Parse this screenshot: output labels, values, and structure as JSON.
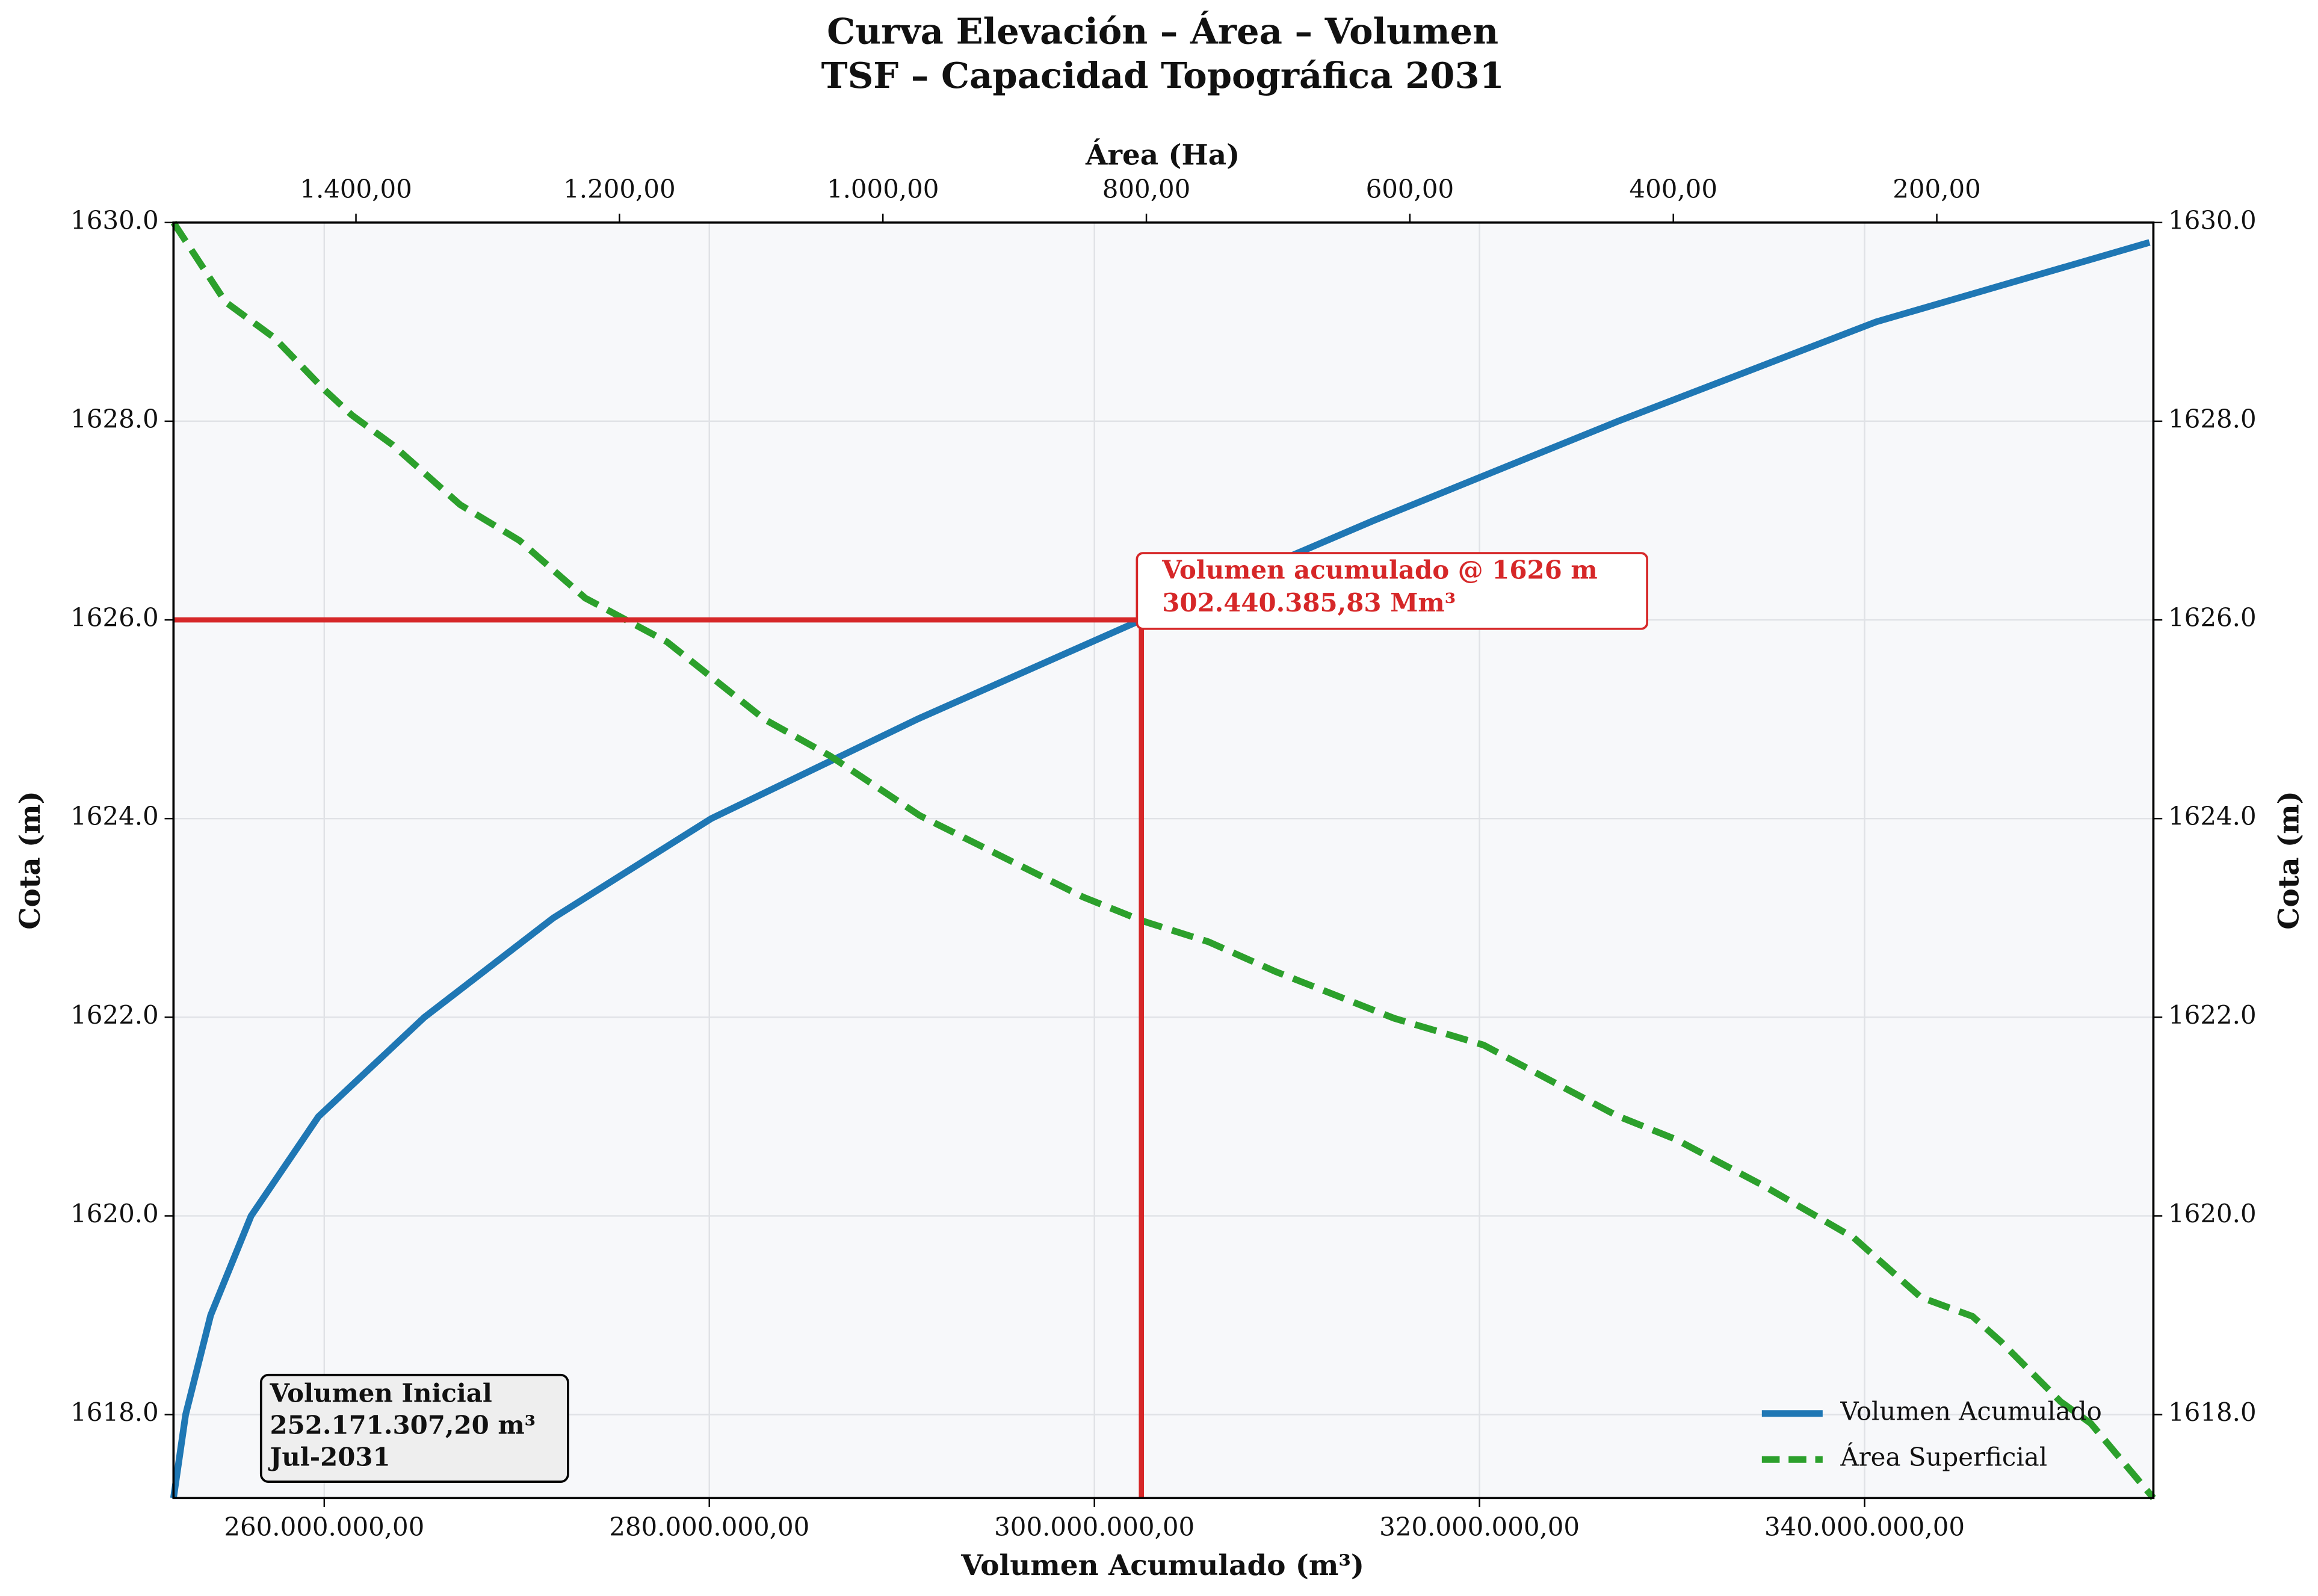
{
  "chart_data": {
    "type": "line",
    "title": [
      "Curva Elevación – Área – Volumen",
      "TSF – Capacidad Topográfica 2031"
    ],
    "xlabel": "Volumen Acumulado (m³)",
    "x2label": "Área (Ha)",
    "ylabel": "Cota (m)",
    "xlim": [
      252171307.2,
      355000000
    ],
    "x2lim": [
      1538.5,
      35.6
    ],
    "ylim": [
      1617.16,
      1630
    ],
    "xticks": [
      {
        "value": 260000000,
        "label": "260.000.000,00"
      },
      {
        "value": 280000000,
        "label": "280.000.000,00"
      },
      {
        "value": 300000000,
        "label": "300.000.000,00"
      },
      {
        "value": 320000000,
        "label": "320.000.000,00"
      },
      {
        "value": 340000000,
        "label": "340.000.000,00"
      }
    ],
    "x2ticks": [
      {
        "value": 1400,
        "label": "1.400,00"
      },
      {
        "value": 1200,
        "label": "1.200,00"
      },
      {
        "value": 1000,
        "label": "1.000,00"
      },
      {
        "value": 800,
        "label": "800,00"
      },
      {
        "value": 600,
        "label": "600,00"
      },
      {
        "value": 400,
        "label": "400,00"
      },
      {
        "value": 200,
        "label": "200,00"
      }
    ],
    "yticks": [
      {
        "value": 1618,
        "label": "1618.0"
      },
      {
        "value": 1620,
        "label": "1620.0"
      },
      {
        "value": 1622,
        "label": "1622.0"
      },
      {
        "value": 1624,
        "label": "1624.0"
      },
      {
        "value": 1626,
        "label": "1626.0"
      },
      {
        "value": 1628,
        "label": "1628.0"
      },
      {
        "value": 1630,
        "label": "1630.0"
      }
    ],
    "grid": true,
    "legend": "lower right",
    "series": [
      {
        "name": "Volumen Acumulado",
        "color": "#1f77b4",
        "style": "solid",
        "axis": "x",
        "x": [
          252171307.2,
          252800000,
          254100000,
          256200000,
          259700000,
          265200000,
          271900000,
          280100000,
          290800000,
          302440385.83,
          314500000,
          327200000,
          340600000,
          354800000
        ],
        "y": [
          1617.16,
          1618,
          1619,
          1620,
          1621,
          1622,
          1623,
          1624,
          1625,
          1626,
          1627,
          1628,
          1629,
          1629.8
        ]
      },
      {
        "name": "Área Superficial",
        "color": "#2ca02c",
        "style": "dashed",
        "axis": "x2",
        "x": [
          1538.5,
          1499,
          1462,
          1425,
          1403,
          1372,
          1321,
          1276,
          1226,
          1164,
          1090,
          1040,
          972,
          916,
          848,
          803,
          753,
          702,
          612,
          544,
          443,
          398,
          331,
          263,
          212,
          173,
          151,
          106,
          83,
          35.6
        ],
        "y": [
          1630,
          1629.2,
          1628.84,
          1628.33,
          1628.06,
          1627.76,
          1627.16,
          1626.8,
          1626.22,
          1625.78,
          1625,
          1624.63,
          1624.03,
          1623.66,
          1623.21,
          1622.97,
          1622.76,
          1622.46,
          1621.99,
          1621.72,
          1621.01,
          1620.77,
          1620.3,
          1619.78,
          1619.18,
          1618.99,
          1618.73,
          1618.13,
          1617.91,
          1617.16
        ]
      }
    ],
    "reference": {
      "x": 302440385.83,
      "y": 1626,
      "color": "#d62728"
    },
    "annotation": [
      "Volumen acumulado @ 1626 m",
      "302.440.385,83 Mm³"
    ],
    "info_box": [
      "Volumen Inicial",
      "252.171.307,20 m³",
      "Jul-2031"
    ]
  }
}
